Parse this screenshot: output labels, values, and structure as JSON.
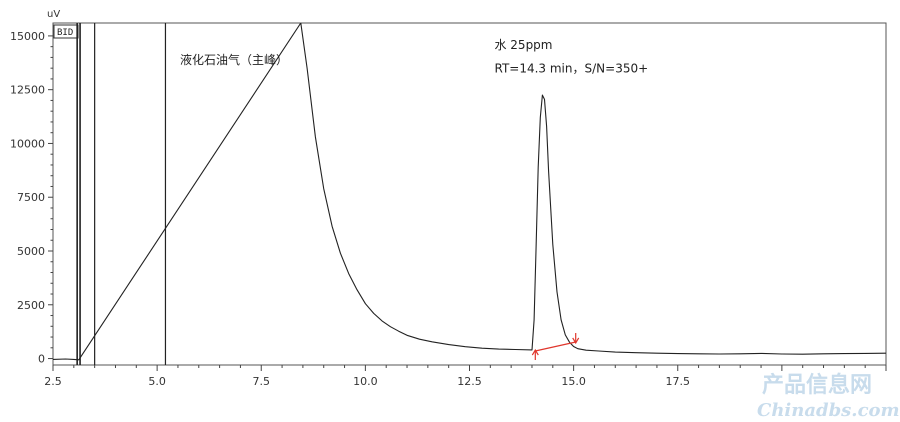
{
  "chart_data": {
    "type": "line",
    "title": "",
    "xlabel": "",
    "ylabel": "uV",
    "xlim": [
      2.5,
      22.5
    ],
    "ylim": [
      -300,
      15600
    ],
    "x_ticks": [
      2.5,
      5.0,
      7.5,
      10.0,
      12.5,
      15.0,
      17.5
    ],
    "x_tick_labels": [
      "2.5",
      "5.0",
      "7.5",
      "10.0",
      "12.5",
      "15.0",
      "17.5"
    ],
    "y_ticks": [
      0,
      2500,
      5000,
      7500,
      10000,
      12500,
      15000
    ],
    "y_tick_labels": [
      "0",
      "2500",
      "5000",
      "7500",
      "10000",
      "12500",
      "15000"
    ],
    "grid": false,
    "legend": "none",
    "detector_label": "BID",
    "series": [
      {
        "color": "#222222",
        "x": [
          2.5,
          2.8,
          3.0,
          3.12,
          8.45,
          8.6,
          8.8,
          9.0,
          9.2,
          9.4,
          9.6,
          9.8,
          10.0,
          10.2,
          10.4,
          10.6,
          10.8,
          11.0,
          11.3,
          11.6,
          12.0,
          12.4,
          12.8,
          13.2,
          13.6,
          14.0,
          14.05,
          14.1,
          14.15,
          14.2,
          14.25,
          14.3,
          14.35,
          14.4,
          14.5,
          14.6,
          14.7,
          14.8,
          14.9,
          15.0,
          15.1,
          15.3,
          15.6,
          16.0,
          16.5,
          17.0,
          17.5,
          18.0,
          18.5,
          19.0,
          19.5,
          20.0,
          20.5,
          21.0,
          21.5,
          22.0,
          22.5
        ],
        "y": [
          -40,
          -20,
          -40,
          -60,
          15600,
          13500,
          10300,
          7900,
          6150,
          4900,
          3950,
          3200,
          2550,
          2100,
          1750,
          1480,
          1270,
          1080,
          900,
          780,
          650,
          550,
          480,
          440,
          420,
          400,
          1800,
          5200,
          8900,
          11200,
          12250,
          12050,
          10800,
          8700,
          5300,
          3100,
          1800,
          1100,
          760,
          560,
          460,
          390,
          350,
          300,
          270,
          250,
          230,
          220,
          210,
          220,
          240,
          210,
          200,
          220,
          230,
          240,
          250
        ]
      }
    ],
    "spikes": [
      3.08,
      3.15,
      3.5,
      5.2
    ],
    "annotations": [
      {
        "text": "液化石油气（主峰）",
        "x": 5.55,
        "y": 13700
      },
      {
        "text": "水 25ppm",
        "x": 13.1,
        "y": 14400
      },
      {
        "text": "RT=14.3 min，S/N=350+",
        "x": 13.1,
        "y": 13300
      }
    ],
    "baseline_markers": {
      "color": "#e0362c",
      "start": {
        "x": 14.08,
        "y": 350
      },
      "end": {
        "x": 15.05,
        "y": 770
      }
    }
  },
  "watermark": {
    "line1": "产品信息网",
    "line2": "Chinadbs.com"
  }
}
